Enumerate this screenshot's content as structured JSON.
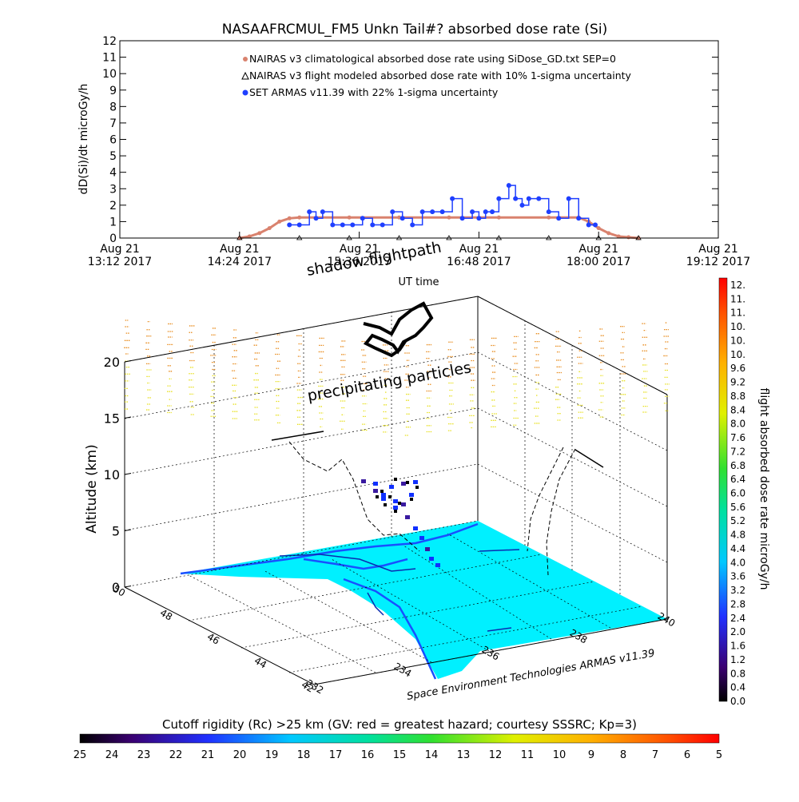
{
  "chart_data": [
    {
      "type": "line",
      "title": "NASAAFRCMUL_FM5 Unkn Tail#? absorbed dose rate (Si)",
      "xlabel": "UT time",
      "ylabel": "dD(Si)/dt microGy/h",
      "ylim": [
        0,
        12
      ],
      "y_ticks": [
        "0",
        "1",
        "2",
        "3",
        "4",
        "5",
        "6",
        "7",
        "8",
        "9",
        "10",
        "11",
        "12"
      ],
      "x_ticks": [
        {
          "date": "Aug 21",
          "time": "13:12 2017"
        },
        {
          "date": "Aug 21",
          "time": "14:24 2017"
        },
        {
          "date": "Aug 21",
          "time": "15:36 2017"
        },
        {
          "date": "Aug 21",
          "time": "16:48 2017"
        },
        {
          "date": "Aug 21",
          "time": "18:00 2017"
        },
        {
          "date": "Aug 21",
          "time": "19:12 2017"
        }
      ],
      "xlim": [
        "13:12",
        "19:12"
      ],
      "grid": false,
      "legend_position": "top-center",
      "series": [
        {
          "name": "NAIRAS v3 climatological absorbed dose rate using SiDose_GD.txt SEP=0",
          "color": "#d9826e",
          "x": [
            "14:24",
            "14:30",
            "14:36",
            "14:42",
            "14:48",
            "14:54",
            "15:00",
            "15:30",
            "16:00",
            "16:30",
            "17:00",
            "17:30",
            "17:48",
            "17:54",
            "18:00",
            "18:06",
            "18:12",
            "18:18",
            "18:24"
          ],
          "values": [
            0.0,
            0.1,
            0.3,
            0.6,
            1.0,
            1.2,
            1.25,
            1.25,
            1.25,
            1.25,
            1.25,
            1.25,
            1.25,
            1.0,
            0.6,
            0.3,
            0.1,
            0.05,
            0.0
          ]
        },
        {
          "name": "NAIRAS v3 flight modeled absorbed dose rate with 10% 1-sigma uncertainty",
          "color": "#000000",
          "x": [
            "14:24",
            "15:00",
            "15:30",
            "16:00",
            "16:30",
            "17:00",
            "17:30",
            "18:00",
            "18:24"
          ],
          "values": [
            0,
            0,
            0,
            0,
            0,
            0,
            0,
            0,
            0
          ]
        },
        {
          "name": "SET ARMAS v11.39 with 22% 1-sigma uncertainty",
          "color": "#1f3fff",
          "x": [
            "14:54",
            "15:00",
            "15:06",
            "15:10",
            "15:14",
            "15:20",
            "15:26",
            "15:32",
            "15:38",
            "15:44",
            "15:50",
            "15:56",
            "16:02",
            "16:08",
            "16:14",
            "16:20",
            "16:26",
            "16:32",
            "16:38",
            "16:44",
            "16:48",
            "16:52",
            "16:56",
            "17:00",
            "17:06",
            "17:10",
            "17:14",
            "17:18",
            "17:24",
            "17:30",
            "17:36",
            "17:42",
            "17:48",
            "17:54",
            "17:58"
          ],
          "values": [
            0.8,
            0.8,
            1.6,
            1.2,
            1.6,
            0.8,
            0.8,
            0.8,
            1.2,
            0.8,
            0.8,
            1.6,
            1.2,
            0.8,
            1.6,
            1.6,
            1.6,
            2.4,
            1.2,
            1.6,
            1.2,
            1.6,
            1.6,
            2.4,
            3.2,
            2.4,
            2.0,
            2.4,
            2.4,
            1.6,
            1.2,
            2.4,
            1.2,
            0.8,
            0.8
          ]
        }
      ]
    },
    {
      "type": "scatter",
      "subtype": "3d-trajectory",
      "zlabel": "Altitude (km)",
      "zlim": [
        0,
        20
      ],
      "z_ticks": [
        "0",
        "5",
        "10",
        "15",
        "20"
      ],
      "y_ticks": [
        "50",
        "48",
        "46",
        "44",
        "42"
      ],
      "x_ticks": [
        "232",
        "234",
        "236",
        "238",
        "240"
      ],
      "annotations": {
        "shadow": "shadow flightpath",
        "precip": "precipitating particles",
        "credit": "Space Environment Technologies ARMAS v11.39"
      },
      "colorbar": {
        "label": "flight absorbed dose rate microGy/h",
        "position": "right",
        "ticks": [
          "12.",
          "11.",
          "11.",
          "10.",
          "10.",
          "10.",
          "9.6",
          "9.2",
          "8.8",
          "8.4",
          "8.0",
          "7.6",
          "7.2",
          "6.8",
          "6.4",
          "6.0",
          "5.6",
          "5.2",
          "4.8",
          "4.4",
          "4.0",
          "3.6",
          "3.2",
          "2.8",
          "2.4",
          "2.0",
          "1.6",
          "1.2",
          "0.8",
          "0.4",
          "0.0"
        ]
      }
    },
    {
      "type": "heatmap",
      "subtype": "colorbar",
      "label": "Cutoff rigidity (Rc) >25 km (GV: red = greatest hazard; courtesy SSSRC; Kp=3)",
      "ticks": [
        "25",
        "24",
        "23",
        "22",
        "21",
        "20",
        "19",
        "18",
        "17",
        "16",
        "15",
        "14",
        "13",
        "12",
        "11",
        "10",
        "9",
        "8",
        "7",
        "6",
        "5"
      ]
    }
  ]
}
